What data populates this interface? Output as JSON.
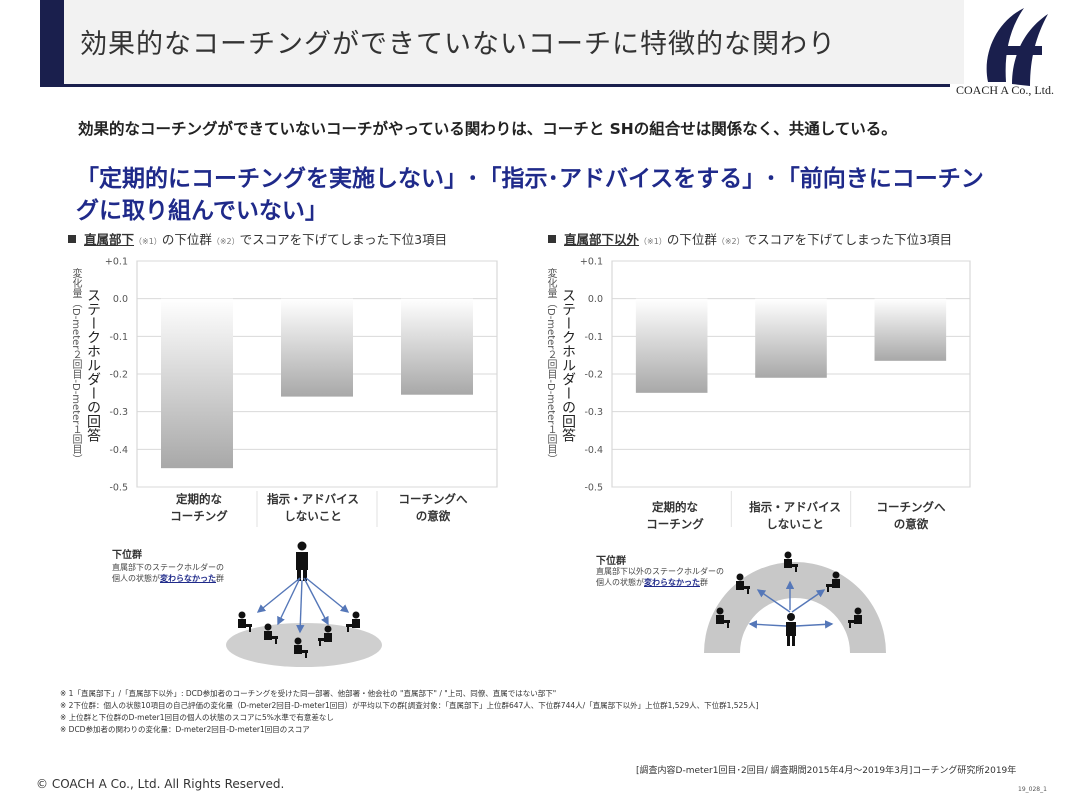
{
  "header": {
    "title": "効果的なコーチングができていないコーチに特徴的な関わり",
    "company": "COACH A Co., Ltd.",
    "brand_color": "#1a1f4d"
  },
  "lead": {
    "text": "効果的なコーチングができていないコーチがやっている関わりは、コーチと SHの組合せは関係なく、共通している。",
    "headline": "「定期的にコーチングを実施しない」･「指示･アドバイスをする」･「前向きにコーチングに取り組んでいない」",
    "headline_color": "#1f2a8a"
  },
  "panels": [
    {
      "title_pre": "直属部下",
      "title_note1": "（※1）",
      "title_mid": "の下位群",
      "title_note2": "（※2）",
      "title_post": "でスコアを下げてしまった下位3項目",
      "ylabel_main": "ステークホルダーの回答",
      "ylabel_sub": "変化量（D-meter２回目-D-meter１回目）",
      "group_label": "下位群",
      "group_desc_1": "直属部下のステークホルダーの",
      "group_desc_2a": "個人の状態が",
      "group_desc_2b": "変わらなかった",
      "group_desc_2c": "群",
      "categories": [
        "定期的な\nコーチング",
        "指示・アドバイス\nしないこと",
        "コーチングへ\nの意欲"
      ]
    },
    {
      "title_pre": "直属部下以外",
      "title_note1": "（※1）",
      "title_mid": "の下位群",
      "title_note2": "（※2）",
      "title_post": "でスコアを下げてしまった下位3項目",
      "ylabel_main": "ステークホルダーの回答",
      "ylabel_sub": "変化量（D-meter２回目-D-meter１回目）",
      "group_label": "下位群",
      "group_desc_1": "直属部下以外のステークホルダーの",
      "group_desc_2a": "個人の状態が",
      "group_desc_2b": "変わらなかった",
      "group_desc_2c": "群",
      "categories": [
        "定期的な\nコーチング",
        "指示・アドバイス\nしないこと",
        "コーチングへ\nの意欲"
      ]
    }
  ],
  "chart_data": [
    {
      "type": "bar",
      "categories": [
        "定期的なコーチング",
        "指示・アドバイスしないこと",
        "コーチングへの意欲"
      ],
      "values": [
        -0.45,
        -0.26,
        -0.255
      ],
      "ylim": [
        -0.5,
        0.1
      ],
      "yticks": [
        "+0.1",
        "0.0",
        "-0.1",
        "-0.2",
        "-0.3",
        "-0.4",
        "-0.5"
      ],
      "grid": true
    },
    {
      "type": "bar",
      "categories": [
        "定期的なコーチング",
        "指示・アドバイスしないこと",
        "コーチングへの意欲"
      ],
      "values": [
        -0.25,
        -0.21,
        -0.165
      ],
      "ylim": [
        -0.5,
        0.1
      ],
      "yticks": [
        "+0.1",
        "0.0",
        "-0.1",
        "-0.2",
        "-0.3",
        "-0.4",
        "-0.5"
      ],
      "grid": true
    }
  ],
  "notes": [
    "※ 1「直属部下」/「直属部下以外」: DCD参加者のコーチングを受けた同一部署、他部署・他会社の \"直属部下\" / \"上司、同僚、直属ではない部下\"",
    "※ 2下位群：個人の状態10項目の自己評価の変化量（D-meter2回目-D-meter1回目）が平均以下の群[調査対象：「直属部下」上位群647人、下位群744人/「直属部下以外」上位群1,529人、下位群1,525人]",
    "※ 上位群と下位群のD-meter1回目の個人の状態のスコアに5%水準で有意差なし",
    "※ DCD参加者の関わりの変化量：D-meter2回目-D-meter1回目のスコア"
  ],
  "footer": {
    "survey": "[調査内容D-meter1回目･2回目/ 調査期間2015年4月～2019年3月]コーチング研究所2019年",
    "copyright": "© COACH A Co., Ltd.  All Rights Reserved.",
    "page": "19_028_1"
  }
}
